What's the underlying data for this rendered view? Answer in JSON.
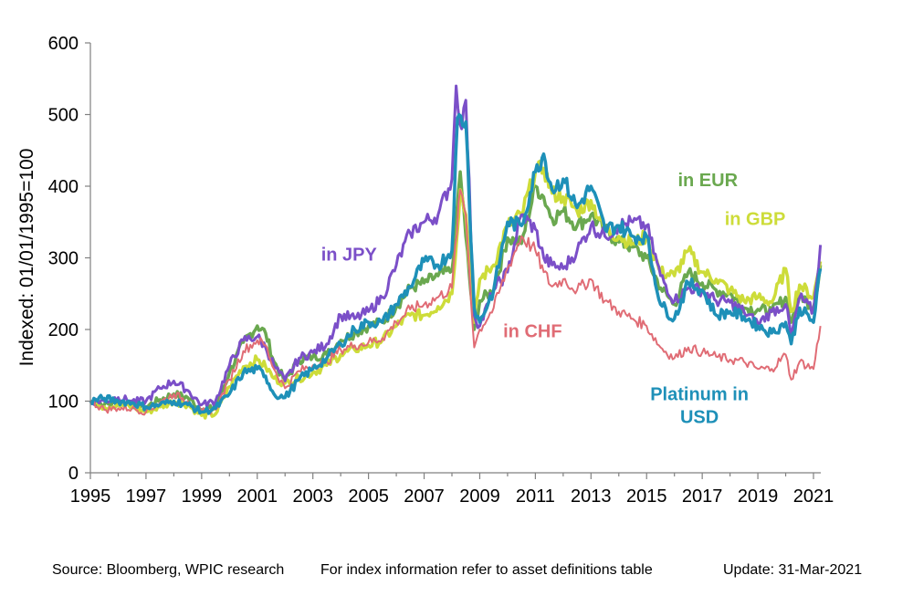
{
  "chart_data": {
    "type": "line",
    "title": "",
    "xlabel": "",
    "ylabel": "Indexed: 01/01/1995=100",
    "xlim": [
      1995,
      2021.25
    ],
    "ylim": [
      0,
      600
    ],
    "x_ticks": [
      "1995",
      "1997",
      "1999",
      "2001",
      "2003",
      "2005",
      "2007",
      "2009",
      "2011",
      "2013",
      "2015",
      "2017",
      "2019",
      "2021"
    ],
    "y_ticks": [
      "0",
      "100",
      "200",
      "300",
      "400",
      "500",
      "600"
    ],
    "grid": false,
    "legend": "none",
    "annotations": [
      {
        "text": "in JPY",
        "color": "#7b4fc8",
        "anchor_x": 2004.3,
        "anchor_y": 296,
        "lines": [
          "in JPY"
        ]
      },
      {
        "text": "in EUR",
        "color": "#6aa84f",
        "anchor_x": 2017.2,
        "anchor_y": 400,
        "lines": [
          "in EUR"
        ]
      },
      {
        "text": "in GBP",
        "color": "#cddc39",
        "anchor_x": 2018.9,
        "anchor_y": 346,
        "lines": [
          "in GBP"
        ]
      },
      {
        "text": "in CHF",
        "color": "#e06c75",
        "anchor_x": 2010.9,
        "anchor_y": 189,
        "lines": [
          "in CHF"
        ]
      },
      {
        "text": "Platinum in USD",
        "color": "#1e90b8",
        "anchor_x": 2016.9,
        "anchor_y": 101,
        "lines": [
          "Platinum  in",
          "USD"
        ]
      }
    ],
    "series": [
      {
        "key": "eur",
        "color": "#6aa84f",
        "width": 3.5,
        "x": [
          1995,
          1995.5,
          1996,
          1996.5,
          1997,
          1997.5,
          1998,
          1998.5,
          1999,
          1999.5,
          2000,
          2000.5,
          2001,
          2001.3,
          2001.6,
          2002,
          2002.5,
          2003,
          2003.5,
          2004,
          2004.5,
          2005,
          2005.5,
          2006,
          2006.5,
          2007,
          2007.5,
          2008,
          2008.3,
          2008.5,
          2008.8,
          2009,
          2009.5,
          2010,
          2010.5,
          2011,
          2011.3,
          2011.6,
          2012,
          2012.5,
          2013,
          2013.5,
          2014,
          2014.5,
          2015,
          2015.5,
          2016,
          2016.5,
          2017,
          2017.5,
          2018,
          2018.5,
          2019,
          2019.5,
          2020,
          2020.2,
          2020.5,
          2021,
          2021.25
        ],
        "y": [
          100,
          95,
          98,
          96,
          92,
          102,
          110,
          105,
          88,
          90,
          140,
          182,
          205,
          195,
          155,
          128,
          158,
          162,
          165,
          185,
          195,
          205,
          210,
          232,
          258,
          265,
          275,
          282,
          420,
          330,
          200,
          240,
          255,
          328,
          320,
          400,
          385,
          355,
          365,
          345,
          360,
          338,
          322,
          315,
          300,
          258,
          235,
          280,
          265,
          255,
          250,
          230,
          228,
          225,
          245,
          210,
          250,
          230,
          290
        ]
      },
      {
        "key": "gbp",
        "color": "#cddc39",
        "width": 3.5,
        "x": [
          1995,
          1995.5,
          1996,
          1996.5,
          1997,
          1997.5,
          1998,
          1998.5,
          1999,
          1999.5,
          2000,
          2000.5,
          2001,
          2001.3,
          2001.6,
          2002,
          2002.5,
          2003,
          2003.5,
          2004,
          2004.5,
          2005,
          2005.5,
          2006,
          2006.5,
          2007,
          2007.5,
          2008,
          2008.3,
          2008.5,
          2008.8,
          2009,
          2009.5,
          2010,
          2010.5,
          2011,
          2011.3,
          2011.6,
          2012,
          2012.5,
          2013,
          2013.5,
          2014,
          2014.5,
          2015,
          2015.5,
          2016,
          2016.5,
          2017,
          2017.5,
          2018,
          2018.5,
          2019,
          2019.5,
          2020,
          2020.2,
          2020.5,
          2021,
          2021.25
        ],
        "y": [
          100,
          92,
          95,
          92,
          85,
          92,
          100,
          95,
          80,
          82,
          120,
          148,
          158,
          148,
          132,
          125,
          132,
          140,
          150,
          165,
          172,
          178,
          185,
          205,
          220,
          220,
          232,
          250,
          395,
          360,
          210,
          270,
          290,
          345,
          360,
          420,
          425,
          390,
          385,
          365,
          380,
          340,
          330,
          320,
          330,
          280,
          275,
          310,
          280,
          270,
          255,
          240,
          245,
          238,
          285,
          225,
          262,
          245,
          295
        ]
      },
      {
        "key": "jpy",
        "color": "#7b4fc8",
        "width": 3,
        "x": [
          1995,
          1995.5,
          1996,
          1996.5,
          1997,
          1997.5,
          1998,
          1998.5,
          1999,
          1999.5,
          2000,
          2000.5,
          2001,
          2001.3,
          2001.6,
          2002,
          2002.5,
          2003,
          2003.5,
          2004,
          2004.5,
          2005,
          2005.5,
          2006,
          2006.5,
          2007,
          2007.5,
          2008,
          2008.15,
          2008.35,
          2008.5,
          2008.8,
          2009,
          2009.5,
          2010,
          2010.5,
          2011,
          2011.3,
          2011.6,
          2012,
          2012.5,
          2013,
          2013.5,
          2014,
          2014.5,
          2015,
          2015.5,
          2016,
          2016.5,
          2017,
          2017.5,
          2018,
          2018.5,
          2019,
          2019.5,
          2020,
          2020.2,
          2020.5,
          2021,
          2021.25
        ],
        "y": [
          100,
          100,
          105,
          100,
          100,
          118,
          128,
          115,
          95,
          100,
          150,
          185,
          190,
          175,
          150,
          128,
          160,
          168,
          180,
          220,
          215,
          225,
          245,
          290,
          335,
          350,
          360,
          410,
          540,
          480,
          520,
          220,
          205,
          255,
          280,
          360,
          340,
          300,
          290,
          285,
          310,
          345,
          330,
          345,
          350,
          345,
          275,
          240,
          258,
          255,
          240,
          238,
          225,
          208,
          225,
          235,
          190,
          245,
          225,
          318
        ]
      },
      {
        "key": "chf",
        "color": "#e06c75",
        "width": 2,
        "x": [
          1995,
          1995.5,
          1996,
          1996.5,
          1997,
          1997.5,
          1998,
          1998.5,
          1999,
          1999.5,
          2000,
          2000.5,
          2001,
          2001.3,
          2001.6,
          2002,
          2002.5,
          2003,
          2003.5,
          2004,
          2004.5,
          2005,
          2005.5,
          2006,
          2006.5,
          2007,
          2007.5,
          2008,
          2008.3,
          2008.5,
          2008.8,
          2009,
          2009.5,
          2010,
          2010.5,
          2011,
          2011.3,
          2011.6,
          2012,
          2012.5,
          2013,
          2013.5,
          2014,
          2014.5,
          2015,
          2015.5,
          2016,
          2016.5,
          2017,
          2017.5,
          2018,
          2018.5,
          2019,
          2019.5,
          2020,
          2020.2,
          2020.5,
          2021,
          2021.25
        ],
        "y": [
          100,
          88,
          90,
          90,
          85,
          98,
          110,
          100,
          85,
          88,
          130,
          170,
          185,
          178,
          145,
          118,
          142,
          150,
          155,
          172,
          178,
          182,
          188,
          210,
          228,
          235,
          245,
          258,
          395,
          360,
          175,
          200,
          230,
          285,
          330,
          310,
          280,
          260,
          270,
          255,
          270,
          240,
          225,
          215,
          205,
          175,
          160,
          175,
          168,
          162,
          158,
          155,
          145,
          145,
          165,
          130,
          155,
          145,
          205
        ]
      },
      {
        "key": "usd",
        "color": "#1e90b8",
        "width": 3.5,
        "x": [
          1995,
          1995.5,
          1996,
          1996.5,
          1997,
          1997.5,
          1998,
          1998.5,
          1999,
          1999.5,
          2000,
          2000.5,
          2001,
          2001.3,
          2001.6,
          2002,
          2002.5,
          2003,
          2003.5,
          2004,
          2004.5,
          2005,
          2005.5,
          2006,
          2006.5,
          2007,
          2007.5,
          2008,
          2008.2,
          2008.5,
          2008.8,
          2009,
          2009.5,
          2010,
          2010.5,
          2011,
          2011.3,
          2011.6,
          2012,
          2012.5,
          2013,
          2013.5,
          2014,
          2014.5,
          2015,
          2015.5,
          2016,
          2016.5,
          2017,
          2017.5,
          2018,
          2018.5,
          2019,
          2019.5,
          2020,
          2020.2,
          2020.5,
          2021,
          2021.25
        ],
        "y": [
          100,
          104,
          100,
          98,
          92,
          95,
          100,
          95,
          85,
          90,
          110,
          140,
          145,
          135,
          110,
          105,
          130,
          145,
          160,
          180,
          200,
          210,
          210,
          235,
          260,
          295,
          290,
          310,
          495,
          490,
          230,
          210,
          255,
          350,
          345,
          420,
          445,
          395,
          410,
          370,
          400,
          340,
          345,
          330,
          330,
          235,
          215,
          265,
          255,
          220,
          225,
          218,
          205,
          195,
          210,
          180,
          230,
          210,
          285
        ]
      }
    ]
  },
  "footer": {
    "source": "Source: Bloomberg, WPIC research",
    "note": "For index information refer to asset definitions table",
    "update": "Update: 31-Mar-2021"
  }
}
